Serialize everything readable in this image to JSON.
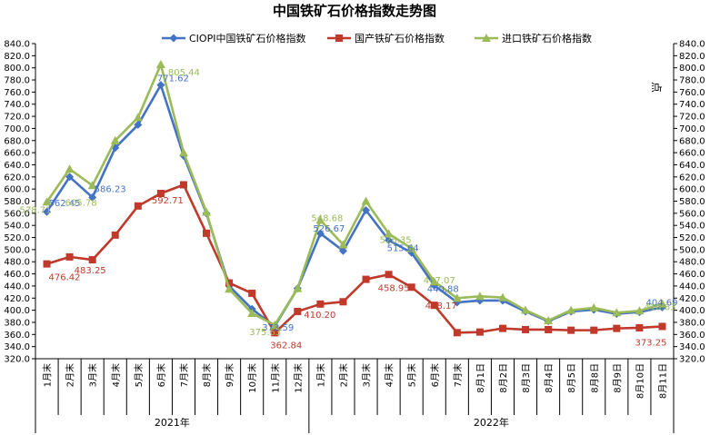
{
  "chart_data": {
    "type": "line",
    "title": "中国铁矿石价格指数走势图",
    "right_axis_label": "点",
    "ylim": [
      320,
      840
    ],
    "ytick_step": 20,
    "grid": false,
    "legend_position": "top",
    "categories": [
      "1月末",
      "2月末",
      "3月末",
      "4月末",
      "5月末",
      "6月末",
      "7月末",
      "8月末",
      "9月末",
      "10月末",
      "11月末",
      "12月末",
      "1月末",
      "2月末",
      "3月末",
      "4月末",
      "5月末",
      "6月末",
      "7月末",
      "8月1日",
      "8月2日",
      "8月3日",
      "8月4日",
      "8月5日",
      "8月8日",
      "8月9日",
      "8月10日",
      "8月11日"
    ],
    "year_groups": [
      {
        "label": "2021年",
        "count": 12
      },
      {
        "label": "2022年",
        "count": 16
      }
    ],
    "series": [
      {
        "name": "CIOPI中国铁矿石价格指数",
        "color": "#4472C4",
        "marker": "diamond",
        "values": [
          562.45,
          620,
          586.23,
          668,
          706,
          771.62,
          655,
          560,
          440,
          402,
          373.59,
          436,
          526.67,
          498,
          565,
          515.64,
          495,
          440.88,
          413,
          416,
          416,
          398,
          382,
          398,
          401,
          394,
          397,
          404.69
        ],
        "labels": [
          {
            "index": 0,
            "text": "562.45"
          },
          {
            "index": 2,
            "text": "586.23"
          },
          {
            "index": 5,
            "text": "771.62"
          },
          {
            "index": 10,
            "text": "373.59"
          },
          {
            "index": 12,
            "text": "526.67"
          },
          {
            "index": 15,
            "text": "515.64"
          },
          {
            "index": 17,
            "text": "440.88"
          },
          {
            "index": 27,
            "text": "404.69"
          }
        ]
      },
      {
        "name": "国产铁矿石价格指数",
        "color": "#C0392B",
        "marker": "square",
        "values": [
          476.42,
          488,
          483.25,
          524,
          572,
          592.71,
          607,
          527,
          445,
          428,
          362.84,
          398,
          410.2,
          414,
          451,
          458.95,
          438,
          408.17,
          363,
          364,
          370,
          368,
          368,
          367,
          367,
          370,
          371,
          373.25
        ],
        "labels": [
          {
            "index": 0,
            "text": "476.42"
          },
          {
            "index": 2,
            "text": "483.25"
          },
          {
            "index": 5,
            "text": "592.71"
          },
          {
            "index": 10,
            "text": "362.84"
          },
          {
            "index": 12,
            "text": "410.20"
          },
          {
            "index": 15,
            "text": "458.95"
          },
          {
            "index": 17,
            "text": "408.17"
          },
          {
            "index": 27,
            "text": "373.25"
          }
        ]
      },
      {
        "name": "进口铁矿石价格指数",
        "color": "#9BBB59",
        "marker": "triangle",
        "values": [
          578.71,
          633,
          605.78,
          680,
          718,
          805.44,
          660,
          562,
          435,
          395,
          375.63,
          436,
          548.68,
          508,
          580,
          526.35,
          502,
          447.07,
          420,
          423,
          421,
          400,
          383,
          400,
          404,
          396,
          399,
          410.63
        ],
        "labels": [
          {
            "index": 0,
            "text": "578.71"
          },
          {
            "index": 2,
            "text": "605.78"
          },
          {
            "index": 5,
            "text": "805.44"
          },
          {
            "index": 10,
            "text": "375.63"
          },
          {
            "index": 12,
            "text": "548.68"
          },
          {
            "index": 15,
            "text": "526.35"
          },
          {
            "index": 17,
            "text": "447.07"
          },
          {
            "index": 27,
            "text": "410.63"
          }
        ]
      }
    ]
  }
}
